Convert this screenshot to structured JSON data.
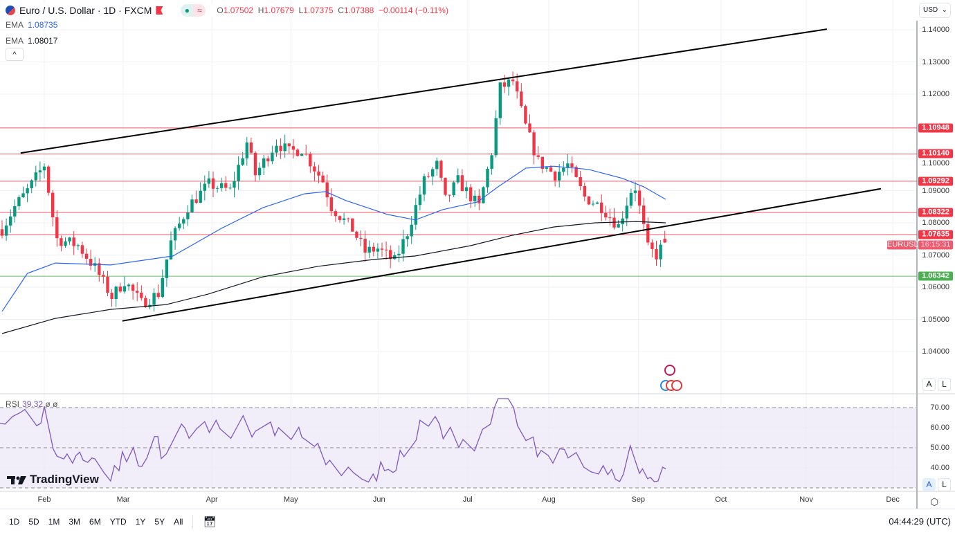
{
  "header": {
    "title": "Euro / U.S. Dollar · 1D · FXCM",
    "open_label": "O",
    "open": "1.07502",
    "high_label": "H",
    "high": "1.07679",
    "low_label": "L",
    "low": "1.07375",
    "close_label": "C",
    "close": "1.07388",
    "change": "−0.00114 (−0.11%)",
    "market_status_icon": "dot",
    "wave_icon": "≈"
  },
  "indicators": {
    "ema1_label": "EMA",
    "ema1_value": "1.08735",
    "ema2_label": "EMA",
    "ema2_value": "1.08017",
    "collapse_icon": "^",
    "rsi_label": "RSI",
    "rsi_value": "39.32",
    "rsi_extra1": "ø",
    "rsi_extra2": "ø"
  },
  "currency_select": "USD",
  "price_axis": [
    "1.14000",
    "1.13000",
    "1.12000",
    "1.10000",
    "1.09000",
    "1.08000",
    "1.07000",
    "1.06000",
    "1.05000",
    "1.04000"
  ],
  "price_axis_values": [
    1.14,
    1.13,
    1.12,
    1.1,
    1.09,
    1.08,
    1.07,
    1.06,
    1.05,
    1.04
  ],
  "rsi_axis": [
    "70.00",
    "60.00",
    "50.00",
    "40.00"
  ],
  "rsi_axis_values": [
    70,
    60,
    50,
    40
  ],
  "level_tags": [
    {
      "label": "1.10948",
      "value": 1.10948,
      "color": "#f23645"
    },
    {
      "label": "1.10140",
      "value": 1.1014,
      "color": "#f23645"
    },
    {
      "label": "1.09292",
      "value": 1.09292,
      "color": "#f23645"
    },
    {
      "label": "1.08322",
      "value": 1.08322,
      "color": "#f23645"
    },
    {
      "label": "1.07635",
      "value": 1.07635,
      "color": "#f23645"
    },
    {
      "label": "1.06342",
      "value": 1.06342,
      "color": "#4caf50"
    }
  ],
  "symbol_tag": "EURUSD",
  "countdown": "16:15:31",
  "months": [
    "Feb",
    "Mar",
    "Apr",
    "May",
    "Jun",
    "Jul",
    "Aug",
    "Sep",
    "Oct",
    "Nov",
    "Dec"
  ],
  "month_index": [
    10,
    28.7,
    49.7,
    68.4,
    89.3,
    110.3,
    129.5,
    150.7,
    170.3,
    190.5,
    211
  ],
  "ranges": [
    "1D",
    "5D",
    "1M",
    "3M",
    "6M",
    "YTD",
    "1Y",
    "5Y",
    "All"
  ],
  "clock": "04:44:29 (UTC)",
  "scale_buttons": {
    "auto": "A",
    "log": "L"
  },
  "logo": "TradingView",
  "colors": {
    "up": "#089981",
    "down": "#f23645",
    "ema50": "#2962ff",
    "ema200": "#131722",
    "rsi": "#7e57c2",
    "rsi_band": "#ede7f6"
  },
  "chart_data": {
    "type": "candlestick",
    "close_keypoints": [
      [
        0,
        1.078
      ],
      [
        3,
        1.085
      ],
      [
        6,
        1.09
      ],
      [
        10,
        1.098
      ],
      [
        12,
        1.082
      ],
      [
        13,
        1.075
      ],
      [
        18,
        1.073
      ],
      [
        22,
        1.066
      ],
      [
        26,
        1.057
      ],
      [
        29,
        1.062
      ],
      [
        33,
        1.055
      ],
      [
        37,
        1.058
      ],
      [
        40,
        1.074
      ],
      [
        44,
        1.085
      ],
      [
        49,
        1.092
      ],
      [
        54,
        1.09
      ],
      [
        58,
        1.105
      ],
      [
        60,
        1.095
      ],
      [
        65,
        1.105
      ],
      [
        68,
        1.102
      ],
      [
        71,
        1.103
      ],
      [
        76,
        1.093
      ],
      [
        78,
        1.085
      ],
      [
        83,
        1.078
      ],
      [
        86,
        1.071
      ],
      [
        89,
        1.072
      ],
      [
        93,
        1.068
      ],
      [
        96,
        1.077
      ],
      [
        100,
        1.093
      ],
      [
        103,
        1.098
      ],
      [
        105,
        1.087
      ],
      [
        108,
        1.093
      ],
      [
        113,
        1.085
      ],
      [
        116,
        1.102
      ],
      [
        118,
        1.122
      ],
      [
        121,
        1.124
      ],
      [
        124,
        1.11
      ],
      [
        127,
        1.099
      ],
      [
        131,
        1.095
      ],
      [
        134,
        1.098
      ],
      [
        138,
        1.088
      ],
      [
        142,
        1.085
      ],
      [
        146,
        1.079
      ],
      [
        149,
        1.09
      ],
      [
        150,
        1.091
      ],
      [
        153,
        1.072
      ],
      [
        155,
        1.07
      ],
      [
        157,
        1.07388
      ]
    ],
    "ema50": [
      [
        0,
        1.0525
      ],
      [
        6,
        1.0643
      ],
      [
        12.6,
        1.0675
      ],
      [
        25.7,
        1.0669
      ],
      [
        40.5,
        1.0697
      ],
      [
        52,
        1.0783
      ],
      [
        61.8,
        1.0847
      ],
      [
        71.6,
        1.089
      ],
      [
        76.6,
        1.0897
      ],
      [
        81.5,
        1.0869
      ],
      [
        91.3,
        1.0826
      ],
      [
        97.9,
        1.0809
      ],
      [
        104.4,
        1.0841
      ],
      [
        112.6,
        1.0865
      ],
      [
        117.5,
        1.0912
      ],
      [
        124.1,
        1.097
      ],
      [
        130.7,
        1.0976
      ],
      [
        138.9,
        1.0966
      ],
      [
        147,
        1.0938
      ],
      [
        152,
        1.0912
      ],
      [
        157.2,
        1.0873
      ]
    ],
    "ema200": [
      [
        0,
        1.0456
      ],
      [
        12.6,
        1.0503
      ],
      [
        25.7,
        1.0531
      ],
      [
        38.9,
        1.0546
      ],
      [
        48.7,
        1.0578
      ],
      [
        61.8,
        1.0632
      ],
      [
        74.9,
        1.0665
      ],
      [
        88,
        1.0686
      ],
      [
        97.9,
        1.0697
      ],
      [
        111,
        1.0729
      ],
      [
        120.8,
        1.0761
      ],
      [
        130.7,
        1.0787
      ],
      [
        140.5,
        1.08
      ],
      [
        150.3,
        1.0804
      ],
      [
        157.2,
        1.08
      ]
    ],
    "trendlines": [
      [
        [
          4.4,
          1.1017
        ],
        [
          195.4,
          1.1402
        ]
      ],
      [
        [
          28.5,
          1.0495
        ],
        [
          208.2,
          1.0906
        ]
      ]
    ],
    "rsi": [
      [
        -0.5,
        62.2
      ],
      [
        0.7,
        61.8
      ],
      [
        2.5,
        65.6
      ],
      [
        4.4,
        67.6
      ],
      [
        5.4,
        69.1
      ],
      [
        8.2,
        61
      ],
      [
        9.2,
        62.2
      ],
      [
        10,
        70.6
      ],
      [
        12.1,
        49.5
      ],
      [
        13,
        45.8
      ],
      [
        14.6,
        44.4
      ],
      [
        15.4,
        46.9
      ],
      [
        16.7,
        42.3
      ],
      [
        17.5,
        46.1
      ],
      [
        18.4,
        47.8
      ],
      [
        19.2,
        43.8
      ],
      [
        20.3,
        42.7
      ],
      [
        21.3,
        44.9
      ],
      [
        22,
        44.4
      ],
      [
        24.1,
        37.7
      ],
      [
        25.7,
        33.4
      ],
      [
        26.6,
        41.1
      ],
      [
        27.7,
        38.6
      ],
      [
        28.5,
        48
      ],
      [
        29.5,
        43
      ],
      [
        31.1,
        50.1
      ],
      [
        32.3,
        40.9
      ],
      [
        33.1,
        40.7
      ],
      [
        34.3,
        44.9
      ],
      [
        36.1,
        55.6
      ],
      [
        36.9,
        55.6
      ],
      [
        37.7,
        44.6
      ],
      [
        38.9,
        46.9
      ],
      [
        42.5,
        61.8
      ],
      [
        43.3,
        59.9
      ],
      [
        44.3,
        54.7
      ],
      [
        45.4,
        57.6
      ],
      [
        46.1,
        59.5
      ],
      [
        48,
        63
      ],
      [
        49.1,
        57.6
      ],
      [
        50.7,
        63.7
      ],
      [
        51.6,
        59.5
      ],
      [
        54.2,
        54.7
      ],
      [
        57.1,
        66
      ],
      [
        59.2,
        55.3
      ],
      [
        60,
        58.2
      ],
      [
        63.6,
        62.8
      ],
      [
        64.6,
        56
      ],
      [
        65.5,
        60
      ],
      [
        68.5,
        54.1
      ],
      [
        70.3,
        60.2
      ],
      [
        71,
        55.3
      ],
      [
        74,
        50.7
      ],
      [
        74.8,
        52.2
      ],
      [
        76.7,
        41.5
      ],
      [
        77.6,
        43.8
      ],
      [
        80.4,
        36.1
      ],
      [
        82,
        40.3
      ],
      [
        83.3,
        37.5
      ],
      [
        85.3,
        34.3
      ],
      [
        86.8,
        32.9
      ],
      [
        87.9,
        36.9
      ],
      [
        88.7,
        33.4
      ],
      [
        89.7,
        43
      ],
      [
        90.6,
        38.6
      ],
      [
        91.5,
        39.2
      ],
      [
        92.6,
        37.7
      ],
      [
        93.3,
        38.6
      ],
      [
        94.3,
        48.7
      ],
      [
        95.2,
        45.5
      ],
      [
        98.1,
        53.8
      ],
      [
        99,
        63.7
      ],
      [
        101,
        60.7
      ],
      [
        102.6,
        65.6
      ],
      [
        103.6,
        61.8
      ],
      [
        104.5,
        54.5
      ],
      [
        106.2,
        60.2
      ],
      [
        108.2,
        50.1
      ],
      [
        109.2,
        54.1
      ],
      [
        111.9,
        48.4
      ],
      [
        113.8,
        59.1
      ],
      [
        115.7,
        61.8
      ],
      [
        116.6,
        69.9
      ],
      [
        117.5,
        74.5
      ],
      [
        119.9,
        74.5
      ],
      [
        121.2,
        69.9
      ],
      [
        122.1,
        61
      ],
      [
        124.1,
        53.6
      ],
      [
        125.8,
        55.3
      ],
      [
        126.8,
        45.5
      ],
      [
        127.7,
        48.7
      ],
      [
        129.4,
        46.1
      ],
      [
        130.5,
        42.3
      ],
      [
        132.1,
        49.5
      ],
      [
        133.2,
        49.2
      ],
      [
        134.1,
        44.9
      ],
      [
        136,
        47.6
      ],
      [
        137.8,
        40.3
      ],
      [
        139.5,
        38
      ],
      [
        141.3,
        36.9
      ],
      [
        142.4,
        41.1
      ],
      [
        143.5,
        36.6
      ],
      [
        144.4,
        39.2
      ],
      [
        145.3,
        34.3
      ],
      [
        146.3,
        33.1
      ],
      [
        147.2,
        36.9
      ],
      [
        148.8,
        51
      ],
      [
        151,
        37.2
      ],
      [
        151.7,
        39.5
      ],
      [
        152.9,
        34.6
      ],
      [
        153.6,
        35.2
      ],
      [
        154.5,
        33.1
      ],
      [
        155.4,
        33.4
      ],
      [
        156.5,
        40.3
      ],
      [
        157.2,
        39.5
      ]
    ],
    "rsi_levels": [
      70,
      50,
      30
    ]
  }
}
